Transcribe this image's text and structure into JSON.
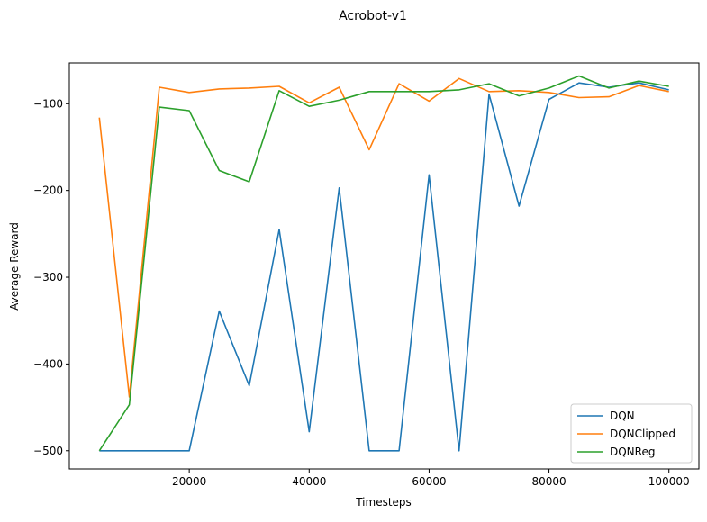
{
  "chart_data": {
    "type": "line",
    "title": "Acrobot-v1",
    "xlabel": "Timesteps",
    "ylabel": "Average Reward",
    "xlim": [
      0,
      105000
    ],
    "ylim": [
      -521,
      -53
    ],
    "xticks": [
      20000,
      40000,
      60000,
      80000,
      100000
    ],
    "xtick_labels": [
      "20000",
      "40000",
      "60000",
      "80000",
      "100000"
    ],
    "yticks": [
      -500,
      -400,
      -300,
      -200,
      -100
    ],
    "ytick_labels": [
      "−500",
      "−400",
      "−300",
      "−200",
      "−100"
    ],
    "grid": false,
    "legend_position": "lower right",
    "x": [
      5000,
      10000,
      15000,
      20000,
      25000,
      30000,
      35000,
      40000,
      45000,
      50000,
      55000,
      60000,
      65000,
      70000,
      75000,
      80000,
      85000,
      90000,
      95000,
      100000
    ],
    "series": [
      {
        "name": "DQN",
        "color": "#1f77b4",
        "values": [
          -500,
          -500,
          -500,
          -500,
          -339,
          -425,
          -245,
          -478,
          -197,
          -500,
          -500,
          -182,
          -500,
          -89,
          -218,
          -95,
          -76,
          -81,
          -76,
          -84
        ]
      },
      {
        "name": "DQNClipped",
        "color": "#ff7f0e",
        "values": [
          -116,
          -438,
          -81,
          -87,
          -83,
          -82,
          -80,
          -99,
          -81,
          -153,
          -77,
          -97,
          -71,
          -86,
          -85,
          -87,
          -93,
          -92,
          -79,
          -86
        ]
      },
      {
        "name": "DQNReg",
        "color": "#2ca02c",
        "values": [
          -500,
          -447,
          -104,
          -108,
          -177,
          -190,
          -85,
          -103,
          -96,
          -86,
          -86,
          -86,
          -84,
          -77,
          -91,
          -82,
          -68,
          -82,
          -74,
          -80
        ]
      }
    ]
  }
}
